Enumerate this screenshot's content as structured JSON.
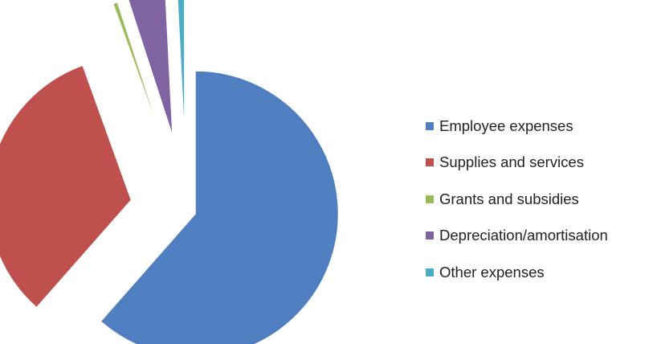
{
  "chart_data": {
    "type": "pie",
    "title": "",
    "exploded": true,
    "legend_position": "right",
    "slices": [
      {
        "label": "Employee expenses",
        "value": 61.5,
        "color": "#4f7fc0"
      },
      {
        "label": "Supplies and services",
        "value": 33.0,
        "color": "#c0504d"
      },
      {
        "label": "Grants and subsidies",
        "value": 0.5,
        "color": "#9bbb59"
      },
      {
        "label": "Depreciation/amortisation",
        "value": 4.2,
        "color": "#8064a2"
      },
      {
        "label": "Other expenses",
        "value": 0.8,
        "color": "#4bacc6"
      }
    ]
  }
}
